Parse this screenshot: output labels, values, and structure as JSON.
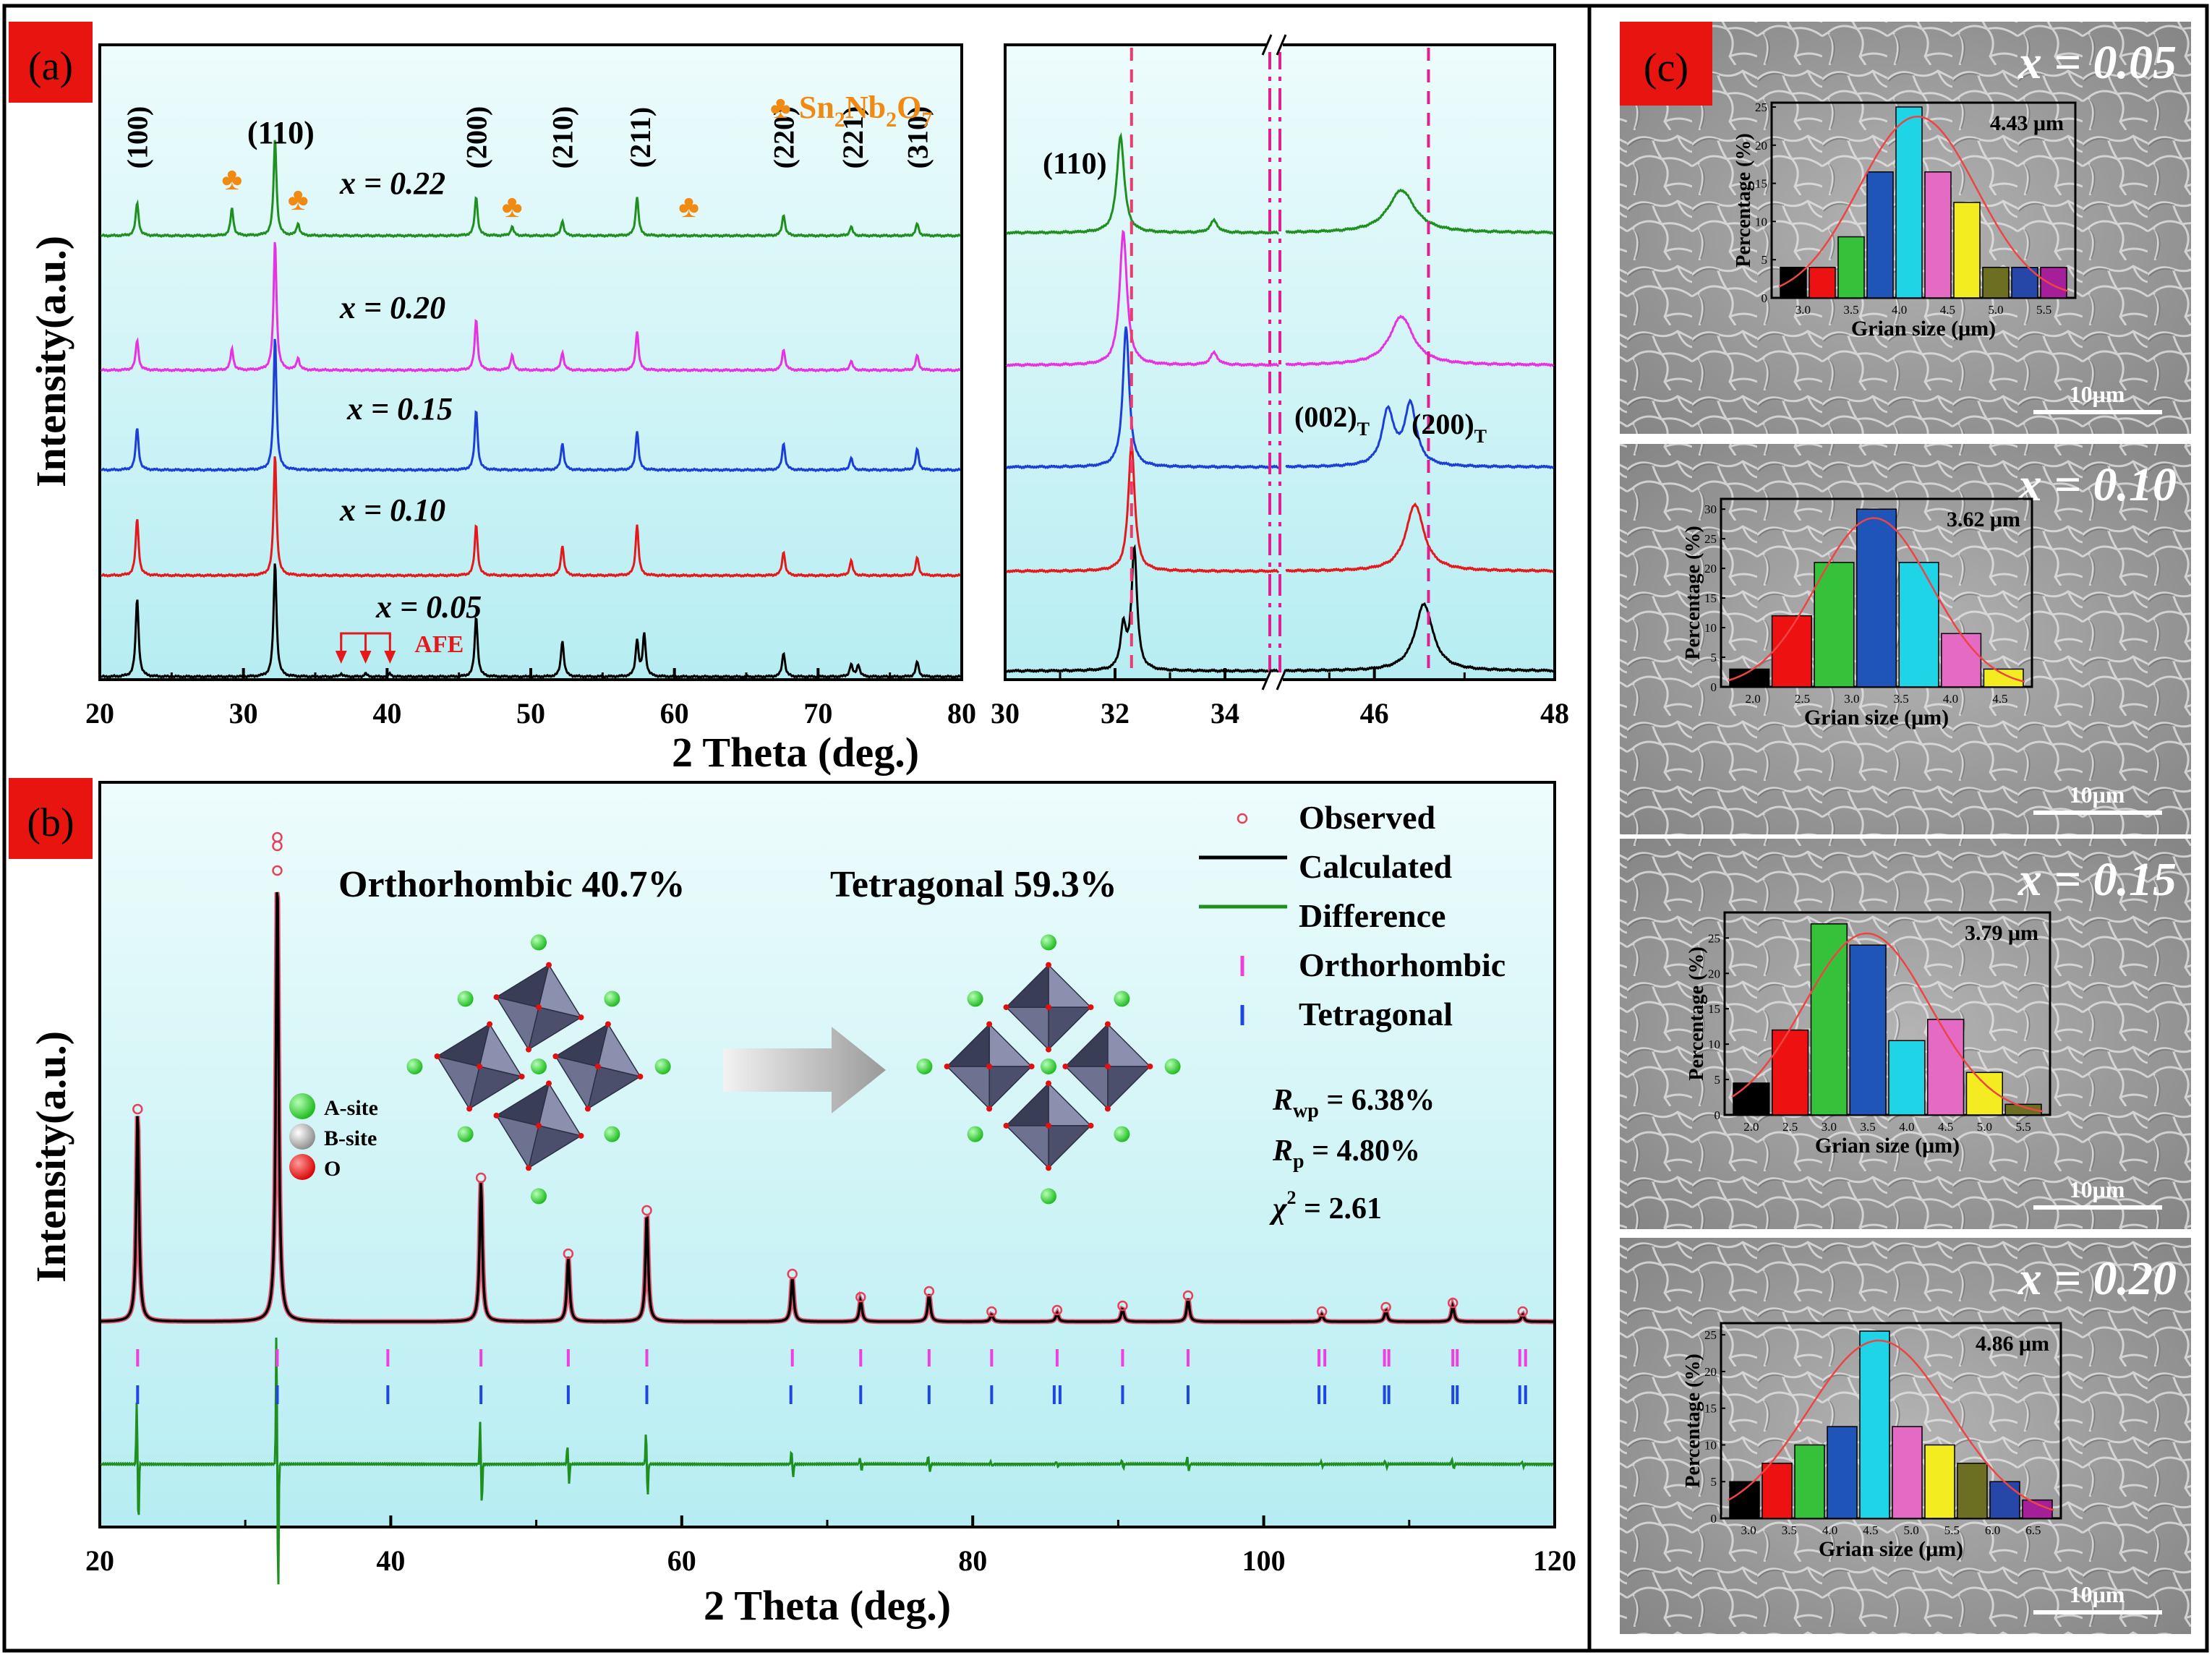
{
  "colors": {
    "panel_bg_top": "#eefcfc",
    "panel_bg_bottom": "#b9eef2",
    "tag_red": "#e8140f",
    "x005": "#000000",
    "x010": "#e3191c",
    "x015": "#1b3fd6",
    "x020": "#e632e0",
    "x022": "#1f8f1f",
    "orange": "#f08a12",
    "calc": "#000000",
    "obs": "#e8405a",
    "diff": "#1f8f1f",
    "ortho": "#ee3fe0",
    "tetra": "#1f47e0",
    "refline": "#ef3a6e",
    "sem_bg": "#9a9a9a",
    "hist_fit": "#ee4444",
    "hist_colors": [
      "#000000",
      "#ee1111",
      "#35c23a",
      "#1f55b8",
      "#1ed4e6",
      "#e46ac3",
      "#f2ec20",
      "#6c6e22",
      "#2646a8",
      "#a61f9a"
    ]
  },
  "panel_a": {
    "tag": "(a)",
    "legend_text": "Sn",
    "legend_sub1": "2",
    "legend_mid": "Nb",
    "legend_sub2": "2",
    "legend_mid2": "O",
    "legend_sub3": "7",
    "legend_icon": "club-icon",
    "ylabel": "Intensity(a.u.)",
    "xlabel": "2 Theta (deg.)",
    "chart_data": {
      "type": "line",
      "xlim": [
        20,
        80
      ],
      "xticks": [
        "20",
        "30",
        "40",
        "50",
        "60",
        "70",
        "80"
      ],
      "series": [
        {
          "name": "x = 0.05",
          "color_key": "x005",
          "baseline_level": 0,
          "peaks": [
            [
              22.6,
              26
            ],
            [
              32.2,
              38
            ],
            [
              36.8,
              1
            ],
            [
              38.5,
              1
            ],
            [
              40.2,
              1
            ],
            [
              46.2,
              20
            ],
            [
              52.2,
              12
            ],
            [
              57.4,
              12
            ],
            [
              57.9,
              14
            ],
            [
              67.6,
              8
            ],
            [
              72.3,
              4
            ],
            [
              72.8,
              4
            ],
            [
              76.9,
              5
            ]
          ]
        },
        {
          "name": "x = 0.10",
          "color_key": "x010",
          "baseline_level": 1,
          "peaks": [
            [
              22.6,
              19
            ],
            [
              32.2,
              40
            ],
            [
              46.2,
              17
            ],
            [
              52.2,
              10
            ],
            [
              57.4,
              17
            ],
            [
              67.6,
              8
            ],
            [
              72.3,
              5
            ],
            [
              76.9,
              6
            ]
          ]
        },
        {
          "name": "x = 0.15",
          "color_key": "x015",
          "baseline_level": 2,
          "peaks": [
            [
              22.6,
              14
            ],
            [
              32.2,
              44
            ],
            [
              46.2,
              20
            ],
            [
              52.2,
              9
            ],
            [
              57.4,
              13
            ],
            [
              67.6,
              9
            ],
            [
              72.3,
              4
            ],
            [
              76.9,
              7
            ]
          ]
        },
        {
          "name": "x = 0.20",
          "color_key": "x020",
          "baseline_level": 3,
          "peaks": [
            [
              22.6,
              10
            ],
            [
              29.2,
              7
            ],
            [
              32.2,
              43
            ],
            [
              33.8,
              4
            ],
            [
              46.2,
              17
            ],
            [
              48.7,
              5
            ],
            [
              52.2,
              6
            ],
            [
              57.4,
              13
            ],
            [
              67.6,
              7
            ],
            [
              72.3,
              3
            ],
            [
              76.9,
              5
            ]
          ]
        },
        {
          "name": "x = 0.22",
          "color_key": "x022",
          "baseline_level": 4,
          "peaks": [
            [
              22.6,
              11
            ],
            [
              29.2,
              9
            ],
            [
              32.2,
              32
            ],
            [
              33.8,
              4
            ],
            [
              46.2,
              13
            ],
            [
              48.7,
              3
            ],
            [
              52.2,
              5
            ],
            [
              57.4,
              13
            ],
            [
              67.6,
              7
            ],
            [
              72.3,
              3
            ],
            [
              76.9,
              4
            ]
          ]
        }
      ],
      "hkl_labels": [
        {
          "x": 22.6,
          "text": "(100)",
          "vertical": true
        },
        {
          "x": 32.2,
          "text": "(110)",
          "vertical": false
        },
        {
          "x": 46.2,
          "text": "(200)",
          "vertical": true
        },
        {
          "x": 52.2,
          "text": "(210)",
          "vertical": true
        },
        {
          "x": 57.6,
          "text": "(211)",
          "vertical": true
        },
        {
          "x": 67.6,
          "text": "(220)",
          "vertical": true
        },
        {
          "x": 72.4,
          "text": "(221)",
          "vertical": true
        },
        {
          "x": 76.9,
          "text": "(310)",
          "vertical": true
        }
      ],
      "impurity_markers": [
        29.2,
        33.8,
        48.7,
        61.0
      ],
      "afe_label": "AFE",
      "afe_arrows": [
        36.8,
        38.5,
        40.2
      ]
    }
  },
  "panel_a_zoom": {
    "chart_data": {
      "type": "line",
      "broken_axis": true,
      "segments": [
        {
          "xlim": [
            30,
            35
          ]
        },
        {
          "xlim": [
            45,
            48
          ]
        }
      ],
      "xticks_left": [
        "30",
        "32",
        "34"
      ],
      "xticks_right": [
        "46",
        "48"
      ],
      "ref_lines": [
        32.3,
        34.85,
        35.0,
        46.6
      ],
      "annot_110": "(110)",
      "annot_002": "(002)",
      "annot_200": "(200)",
      "annot_sub": "T",
      "series": [
        {
          "name": "x = 0.05",
          "color_key": "x005",
          "level": 0,
          "peaks": [
            [
              32.15,
              14,
              0.06
            ],
            [
              32.35,
              40,
              0.06
            ],
            [
              46.55,
              22,
              0.12
            ]
          ]
        },
        {
          "name": "x = 0.10",
          "color_key": "x010",
          "level": 1,
          "peaks": [
            [
              32.3,
              42,
              0.07
            ],
            [
              46.45,
              22,
              0.12
            ]
          ]
        },
        {
          "name": "x = 0.15",
          "color_key": "x015",
          "level": 2,
          "peaks": [
            [
              32.2,
              46,
              0.07
            ],
            [
              46.15,
              18,
              0.08
            ],
            [
              46.4,
              20,
              0.08
            ]
          ]
        },
        {
          "name": "x = 0.20",
          "color_key": "x020",
          "level": 3,
          "peaks": [
            [
              32.15,
              44,
              0.08
            ],
            [
              33.8,
              4,
              0.08
            ],
            [
              46.3,
              16,
              0.16
            ]
          ]
        },
        {
          "name": "x = 0.22",
          "color_key": "x022",
          "level": 4,
          "peaks": [
            [
              32.1,
              32,
              0.08
            ],
            [
              33.8,
              4,
              0.08
            ],
            [
              46.3,
              14,
              0.18
            ]
          ]
        }
      ]
    }
  },
  "panel_b": {
    "tag": "(b)",
    "ylabel": "Intensity(a.u.)",
    "xlabel": "2 Theta (deg.)",
    "phase_ortho": "Orthorhombic 40.7%",
    "phase_tetra": "Tetragonal 59.3%",
    "legend": [
      "Observed",
      "Calculated",
      "Difference",
      "Orthorhombic",
      "Tetragonal"
    ],
    "atoms": [
      "A-site",
      "B-site",
      "O"
    ],
    "rwp_sym": "R",
    "rwp_sub": "wp",
    "rwp_val": " = 6.38%",
    "rp_sym": "R",
    "rp_sub": "p",
    "rp_val": " = 4.80%",
    "chi_sym": "χ",
    "chi_sup": "2",
    "chi_val": " = 2.61",
    "chart_data": {
      "type": "line",
      "xlim": [
        20,
        120
      ],
      "xticks": [
        "20",
        "40",
        "60",
        "80",
        "100",
        "120"
      ],
      "peaks": [
        [
          22.6,
          290
        ],
        [
          32.2,
          620
        ],
        [
          46.2,
          195
        ],
        [
          52.2,
          90
        ],
        [
          57.6,
          150
        ],
        [
          67.6,
          62
        ],
        [
          72.3,
          30
        ],
        [
          77.0,
          38
        ],
        [
          81.3,
          10
        ],
        [
          85.8,
          12
        ],
        [
          90.3,
          18
        ],
        [
          94.8,
          32
        ],
        [
          104,
          10
        ],
        [
          108.4,
          16
        ],
        [
          113.0,
          22
        ],
        [
          117.8,
          10
        ]
      ],
      "ortho_ticks": [
        22.6,
        32.2,
        39.8,
        46.2,
        52.2,
        57.6,
        67.6,
        72.3,
        77.0,
        81.3,
        85.8,
        90.3,
        94.8,
        103.8,
        104.2,
        108.3,
        108.6,
        113.0,
        113.3,
        117.6,
        118.0
      ],
      "tetra_ticks": [
        22.6,
        32.2,
        39.8,
        46.2,
        52.2,
        57.6,
        67.5,
        72.3,
        77.0,
        81.3,
        85.6,
        86.0,
        90.3,
        94.8,
        103.8,
        104.2,
        108.3,
        108.6,
        113.0,
        113.3,
        117.6,
        118.0
      ]
    }
  },
  "panel_c": {
    "tag": "(c)",
    "hist_xlabel": "Grian size (μm)",
    "hist_ylabel": "Percentage (%)",
    "scalebar": "10μm",
    "panels": [
      {
        "label": "x = 0.05",
        "mean": "4.43 μm",
        "xticks": [
          "3.0",
          "3.5",
          "4.0",
          "4.5",
          "5.0",
          "5.5"
        ],
        "yticks": [
          "0",
          "5",
          "10",
          "15",
          "20",
          "25"
        ],
        "ymax": 25,
        "values": [
          4,
          4,
          8,
          16.5,
          25,
          16.5,
          12.5,
          4,
          4,
          4
        ]
      },
      {
        "label": "x = 0.10",
        "mean": "3.62 μm",
        "xticks": [
          "2.0",
          "2.5",
          "3.0",
          "3.5",
          "4.0",
          "4.5"
        ],
        "yticks": [
          "0",
          "5",
          "10",
          "15",
          "20",
          "25",
          "30"
        ],
        "ymax": 31,
        "values": [
          3,
          12,
          21,
          30,
          21,
          9,
          3
        ]
      },
      {
        "label": "x = 0.15",
        "mean": "3.79 μm",
        "xticks": [
          "2.0",
          "2.5",
          "3.0",
          "3.5",
          "4.0",
          "4.5",
          "5.0",
          "5.5"
        ],
        "yticks": [
          "0",
          "5",
          "10",
          "15",
          "20",
          "25"
        ],
        "ymax": 28,
        "values": [
          4.5,
          12,
          27,
          24,
          10.5,
          13.5,
          6,
          1.5
        ]
      },
      {
        "label": "x = 0.20",
        "mean": "4.86 μm",
        "xticks": [
          "3.0",
          "3.5",
          "4.0",
          "4.5",
          "5.0",
          "5.5",
          "6.0",
          "6.5"
        ],
        "yticks": [
          "0",
          "5",
          "10",
          "15",
          "20",
          "25"
        ],
        "ymax": 26,
        "values": [
          5,
          7.5,
          10,
          12.5,
          25.5,
          12.5,
          10,
          7.5,
          5,
          2.5
        ]
      }
    ]
  }
}
